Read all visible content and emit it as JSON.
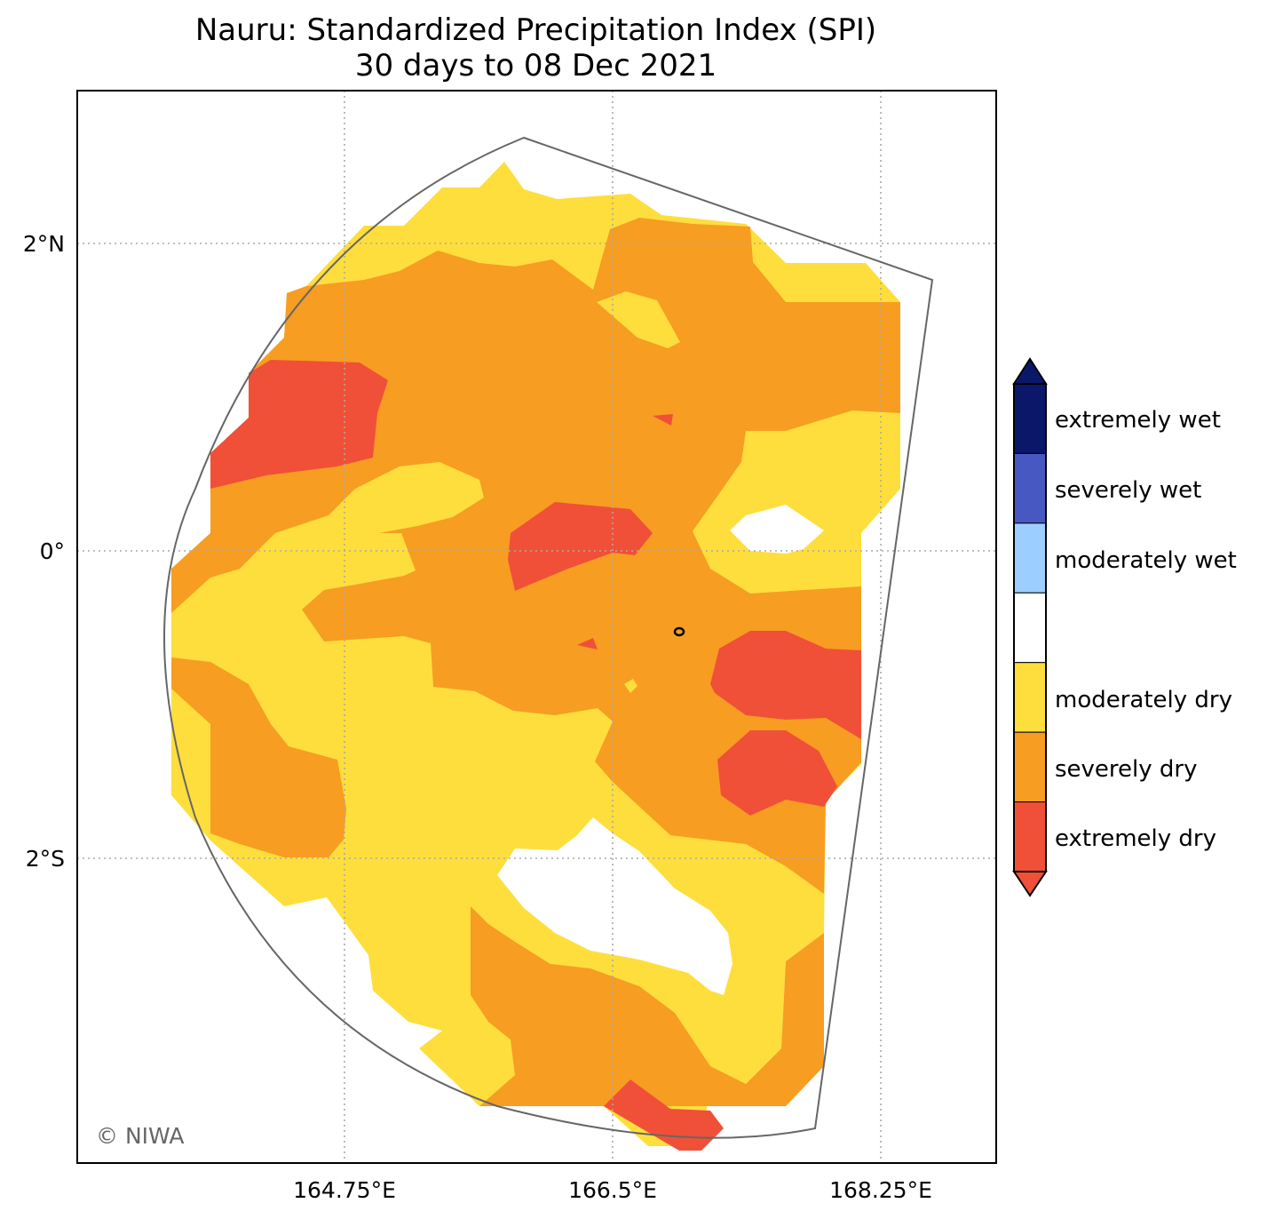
{
  "title": {
    "line1": "Nauru: Standardized Precipitation Index (SPI)",
    "line2": "30 days to 08 Dec 2021"
  },
  "axes": {
    "y_ticks": [
      "2°N",
      "0°",
      "2°S"
    ],
    "x_ticks": [
      "164.75°E",
      "166.5°E",
      "168.25°E"
    ],
    "grid": "dotted"
  },
  "legend": {
    "placement": "right",
    "classes": [
      {
        "label": "extremely wet",
        "color": "#0b1869"
      },
      {
        "label": "severely wet",
        "color": "#4858c2"
      },
      {
        "label": "moderately wet",
        "color": "#9ccfff"
      },
      {
        "label": "",
        "color": "#ffffff"
      },
      {
        "label": "moderately dry",
        "color": "#fede3d"
      },
      {
        "label": "severely dry",
        "color": "#f79d22"
      },
      {
        "label": "extremely dry",
        "color": "#f05038"
      }
    ]
  },
  "credit": "© NIWA",
  "colors": {
    "frame": "#000000",
    "eez_outline": "#666666",
    "grid": "#aaaaaa",
    "moderately_dry": "#fede3d",
    "severely_dry": "#f79d22",
    "extremely_dry": "#f05038"
  }
}
